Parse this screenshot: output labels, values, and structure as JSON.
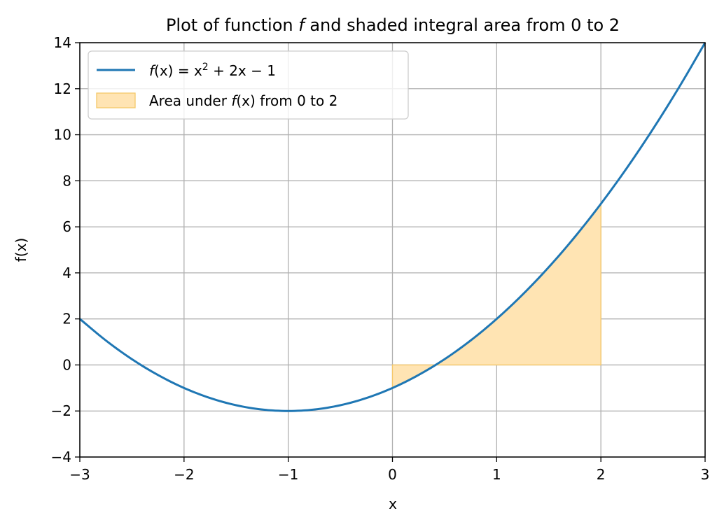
{
  "chart_data": {
    "type": "line",
    "title": "Plot of function f and shaded integral area from 0 to 2",
    "xlabel": "x",
    "ylabel": "f(x)",
    "xlim": [
      -3,
      3
    ],
    "ylim": [
      -4,
      14
    ],
    "x_ticks": [
      -3,
      -2,
      -1,
      0,
      1,
      2,
      3
    ],
    "y_ticks": [
      -4,
      -2,
      0,
      2,
      4,
      6,
      8,
      10,
      12,
      14
    ],
    "x_tick_labels": [
      "−3",
      "−2",
      "−1",
      "0",
      "1",
      "2",
      "3"
    ],
    "y_tick_labels": [
      "−4",
      "−2",
      "0",
      "2",
      "4",
      "6",
      "8",
      "10",
      "12",
      "14"
    ],
    "grid": true,
    "legend_position": "top-left",
    "series": [
      {
        "name": "f(x) = x² + 2x − 1",
        "kind": "line",
        "color": "#1f77b4",
        "x": [
          -3,
          -2.75,
          -2.5,
          -2.25,
          -2,
          -1.75,
          -1.5,
          -1.25,
          -1,
          -0.75,
          -0.5,
          -0.25,
          0,
          0.25,
          0.5,
          0.75,
          1,
          1.25,
          1.5,
          1.75,
          2,
          2.25,
          2.5,
          2.75,
          3
        ],
        "y": [
          2,
          1.0625,
          0.25,
          -0.4375,
          -1,
          -1.4375,
          -1.75,
          -1.9375,
          -2,
          -1.9375,
          -1.75,
          -1.4375,
          -1,
          -0.4375,
          0.25,
          1.0625,
          2,
          3.0625,
          4.25,
          5.5625,
          7,
          8.5625,
          10.25,
          12.0625,
          14
        ]
      },
      {
        "name": "Area under f(x) from 0 to 2",
        "kind": "area",
        "color": "#ffe4b3",
        "edge_color": "#f5c869",
        "x": [
          0,
          0.25,
          0.5,
          0.75,
          1,
          1.25,
          1.5,
          1.75,
          2
        ],
        "y": [
          -1,
          -0.4375,
          0.25,
          1.0625,
          2,
          3.0625,
          4.25,
          5.5625,
          7
        ],
        "baseline": 0
      }
    ]
  },
  "legend": {
    "line_label_prefix": "f",
    "line_label_arg": "(x) = x",
    "line_label_exp": "2",
    "line_label_rest": " + 2x − 1",
    "area_label_before": "Area under ",
    "area_label_f": "f",
    "area_label_arg": "(x)",
    "area_label_after": " from 0 to 2"
  },
  "title_parts": {
    "before": "Plot of function ",
    "italic": "f",
    "after": " and shaded integral area from 0 to 2"
  }
}
